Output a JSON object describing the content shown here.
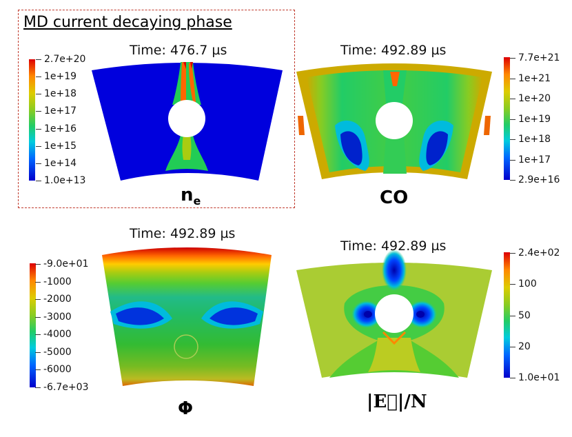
{
  "phase_title": "MD current decaying phase",
  "panels": {
    "ne": {
      "time": "Time: 476.7 µs",
      "label": "n",
      "label_sub": "e",
      "colorbar": [
        "2.7e+20",
        "1e+19",
        "1e+18",
        "1e+17",
        "1e+16",
        "1e+15",
        "1e+14",
        "1.0e+13"
      ]
    },
    "co": {
      "time": "Time: 492.89 µs",
      "label": "CO",
      "colorbar": [
        "7.7e+21",
        "1e+21",
        "1e+20",
        "1e+19",
        "1e+18",
        "1e+17",
        "2.9e+16"
      ]
    },
    "phi": {
      "time": "Time: 492.89 µs",
      "label": "Φ",
      "colorbar": [
        "-9.0e+01",
        "-1000",
        "-2000",
        "-3000",
        "-4000",
        "-5000",
        "-6000",
        "-6.7e+03"
      ]
    },
    "efield": {
      "time": "Time: 492.89 µs",
      "label": "|E⃗|/N",
      "colorbar": [
        "2.4e+02",
        "100",
        "50",
        "20",
        "1.0e+01"
      ]
    }
  },
  "colors": {
    "frame_dash": "#c0392b",
    "jet_low": "#0000cc",
    "jet_high": "#dd0000"
  }
}
